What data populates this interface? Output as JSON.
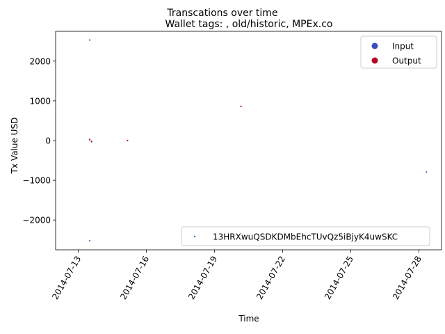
{
  "chart_data": {
    "type": "scatter",
    "suptitle": "Transcations over time",
    "title": "Wallet tags: , old/historic, MPEx.co",
    "xlabel": "Time",
    "ylabel": "Tx Value USD",
    "x_range": [
      "2014-07-12",
      "2014-07-29"
    ],
    "x_ticks": [
      "2014-07-13",
      "2014-07-16",
      "2014-07-19",
      "2014-07-22",
      "2014-07-25",
      "2014-07-28"
    ],
    "ylim": [
      -2750,
      2750
    ],
    "y_ticks": [
      {
        "value": 2000,
        "label": "2000"
      },
      {
        "value": 1000,
        "label": "1000"
      },
      {
        "value": 0,
        "label": "0"
      },
      {
        "value": -1000,
        "label": "−1000"
      },
      {
        "value": -2000,
        "label": "−2000"
      }
    ],
    "legend_top_right": [
      {
        "name": "Input",
        "color": "#3b4cc0"
      },
      {
        "name": "Output",
        "color": "#b40426"
      }
    ],
    "legend_bottom_right": [
      {
        "name": "13HRXwuQSDKDMbEhcTUvQz5iBjyK4uwSKC",
        "color": "#1f77b4"
      }
    ],
    "series": [
      {
        "name": "Input",
        "color": "#3b4cc0",
        "points": [
          {
            "x": "2014-07-13 12:00",
            "y": -2520
          },
          {
            "x": "2014-07-13 12:00",
            "y": 30
          },
          {
            "x": "2014-07-13 14:00",
            "y": -30
          },
          {
            "x": "2014-07-15 04:00",
            "y": 0
          },
          {
            "x": "2014-07-20 04:00",
            "y": 860
          },
          {
            "x": "2014-07-28 08:00",
            "y": -790
          }
        ]
      },
      {
        "name": "Output",
        "color": "#b40426",
        "points": [
          {
            "x": "2014-07-13 12:00",
            "y": 2530
          },
          {
            "x": "2014-07-13 12:00",
            "y": 20
          },
          {
            "x": "2014-07-13 14:00",
            "y": -20
          },
          {
            "x": "2014-07-15 04:00",
            "y": 0
          },
          {
            "x": "2014-07-20 04:00",
            "y": 860
          }
        ]
      }
    ]
  }
}
